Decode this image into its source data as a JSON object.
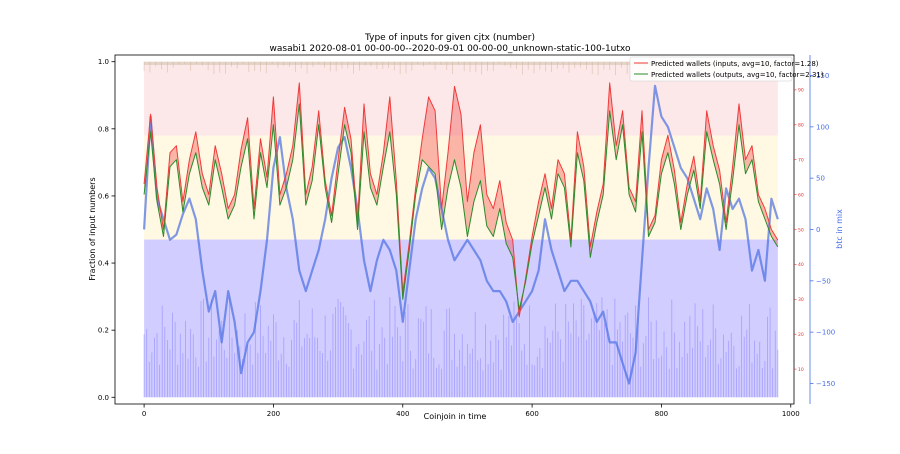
{
  "chart_data": {
    "type": "line",
    "title": "Type of inputs for given cjtx (number)",
    "subtitle": "wasabi1 2020-08-01 00-00-00--2020-09-01 00-00-00_unknown-static-100-1utxo",
    "xlabel": "Coinjoin in time",
    "ylabel": "Fraction of input numbers",
    "y2label": "btc in mix",
    "xlim": [
      -45,
      1005
    ],
    "ylim": [
      -0.02,
      1.02
    ],
    "y2lim": [
      -170,
      170
    ],
    "y3lim": [
      0,
      100
    ],
    "xticks": [
      0,
      200,
      400,
      600,
      800,
      1000
    ],
    "yticks": [
      0.0,
      0.2,
      0.4,
      0.6,
      0.8,
      1.0
    ],
    "y2ticks": [
      -150,
      -100,
      -50,
      0,
      50,
      100,
      150
    ],
    "y3ticks": [
      10,
      20,
      30,
      40,
      50,
      60,
      70,
      80,
      90
    ],
    "legend_position": "top-right",
    "grid": false,
    "series": [
      {
        "name": "Predicted wallets (inputs, avg=10, factor=1.28)",
        "color": "#f03a3a",
        "axis": "right-red",
        "x": [
          0,
          10,
          20,
          30,
          40,
          50,
          60,
          70,
          80,
          90,
          100,
          110,
          120,
          130,
          140,
          150,
          160,
          170,
          180,
          190,
          200,
          210,
          220,
          230,
          240,
          250,
          260,
          270,
          280,
          290,
          300,
          310,
          320,
          330,
          340,
          350,
          360,
          370,
          380,
          390,
          400,
          410,
          420,
          430,
          440,
          450,
          460,
          470,
          480,
          490,
          500,
          510,
          520,
          530,
          540,
          550,
          560,
          570,
          580,
          590,
          600,
          610,
          620,
          630,
          640,
          650,
          660,
          670,
          680,
          690,
          700,
          710,
          720,
          730,
          740,
          750,
          760,
          770,
          780,
          790,
          800,
          810,
          820,
          830,
          840,
          850,
          860,
          870,
          880,
          890,
          900,
          910,
          920,
          930,
          940,
          950,
          960,
          970,
          980
        ],
        "values": [
          63,
          83,
          62,
          50,
          72,
          74,
          58,
          70,
          78,
          66,
          60,
          74,
          66,
          56,
          60,
          73,
          82,
          56,
          76,
          65,
          88,
          60,
          66,
          74,
          92,
          60,
          68,
          84,
          64,
          54,
          70,
          85,
          76,
          52,
          86,
          66,
          60,
          72,
          88,
          64,
          32,
          46,
          62,
          76,
          88,
          84,
          56,
          72,
          91,
          83,
          58,
          72,
          80,
          60,
          56,
          64,
          52,
          47,
          25,
          36,
          48,
          58,
          66,
          56,
          70,
          66,
          47,
          78,
          68,
          45,
          55,
          63,
          92,
          74,
          84,
          62,
          58,
          84,
          50,
          54,
          70,
          77,
          67,
          52,
          63,
          71,
          58,
          84,
          74,
          67,
          52,
          68,
          86,
          70,
          74,
          60,
          56,
          50,
          47
        ]
      },
      {
        "name": "Predicted wallets (outputs, avg=10, factor=2.31)",
        "color": "#2a8c2a",
        "axis": "right-red",
        "x": [
          0,
          10,
          20,
          30,
          40,
          50,
          60,
          70,
          80,
          90,
          100,
          110,
          120,
          130,
          140,
          150,
          160,
          170,
          180,
          190,
          200,
          210,
          220,
          230,
          240,
          250,
          260,
          270,
          280,
          290,
          300,
          310,
          320,
          330,
          340,
          350,
          360,
          370,
          380,
          390,
          400,
          410,
          420,
          430,
          440,
          450,
          460,
          470,
          480,
          490,
          500,
          510,
          520,
          530,
          540,
          550,
          560,
          570,
          580,
          590,
          600,
          610,
          620,
          630,
          640,
          650,
          660,
          670,
          680,
          690,
          700,
          710,
          720,
          730,
          740,
          750,
          760,
          770,
          780,
          790,
          800,
          810,
          820,
          830,
          840,
          850,
          860,
          870,
          880,
          890,
          900,
          910,
          920,
          930,
          940,
          950,
          960,
          970,
          980
        ],
        "values": [
          60,
          78,
          58,
          48,
          68,
          70,
          55,
          66,
          72,
          62,
          57,
          70,
          62,
          53,
          57,
          68,
          76,
          53,
          72,
          62,
          80,
          57,
          62,
          70,
          86,
          57,
          64,
          80,
          62,
          52,
          66,
          80,
          72,
          50,
          78,
          62,
          57,
          68,
          78,
          60,
          30,
          44,
          60,
          70,
          68,
          66,
          50,
          62,
          70,
          62,
          48,
          58,
          64,
          51,
          48,
          56,
          46,
          42,
          27,
          35,
          46,
          54,
          62,
          53,
          66,
          62,
          45,
          72,
          64,
          42,
          52,
          60,
          84,
          70,
          80,
          60,
          55,
          78,
          48,
          52,
          66,
          72,
          63,
          50,
          60,
          67,
          56,
          78,
          70,
          63,
          50,
          64,
          80,
          66,
          70,
          58,
          53,
          48,
          45
        ]
      },
      {
        "name": "",
        "color": "#4a6fe3",
        "axis": "right-blue",
        "x": [
          0,
          10,
          20,
          30,
          40,
          50,
          60,
          70,
          80,
          90,
          100,
          110,
          120,
          130,
          140,
          150,
          160,
          170,
          180,
          190,
          200,
          210,
          220,
          230,
          240,
          250,
          260,
          270,
          280,
          290,
          300,
          310,
          320,
          330,
          340,
          350,
          360,
          370,
          380,
          390,
          400,
          410,
          420,
          430,
          440,
          450,
          460,
          470,
          480,
          490,
          500,
          510,
          520,
          530,
          540,
          550,
          560,
          570,
          580,
          590,
          600,
          610,
          620,
          630,
          640,
          650,
          660,
          670,
          680,
          690,
          700,
          710,
          720,
          730,
          740,
          750,
          760,
          770,
          780,
          790,
          800,
          810,
          820,
          830,
          840,
          850,
          860,
          870,
          880,
          890,
          900,
          910,
          920,
          930,
          940,
          950,
          960,
          970,
          980
        ],
        "values": [
          0,
          110,
          30,
          10,
          -10,
          -5,
          15,
          30,
          10,
          -40,
          -80,
          -60,
          -110,
          -60,
          -90,
          -140,
          -110,
          -100,
          -60,
          -10,
          60,
          90,
          40,
          10,
          -40,
          -60,
          -40,
          -20,
          10,
          50,
          80,
          90,
          60,
          20,
          -30,
          -60,
          -30,
          -10,
          -20,
          -40,
          -90,
          -40,
          10,
          40,
          60,
          50,
          20,
          -10,
          -30,
          -20,
          -10,
          -20,
          -30,
          -50,
          -60,
          -60,
          -70,
          -90,
          -80,
          -70,
          -60,
          -40,
          10,
          -20,
          -40,
          -60,
          -50,
          -50,
          -60,
          -70,
          -90,
          -80,
          -110,
          -110,
          -130,
          -150,
          -120,
          -30,
          60,
          140,
          110,
          100,
          80,
          60,
          50,
          30,
          10,
          40,
          20,
          -20,
          40,
          20,
          30,
          10,
          -40,
          -20,
          -50,
          30,
          10
        ]
      }
    ],
    "background_series": [
      {
        "name": "",
        "color": "#bdb8ff",
        "level": 0.47
      },
      {
        "name": "",
        "color": "#fff5d6",
        "level": 0.78
      },
      {
        "name": "",
        "color": "#fbdede",
        "level": 0.99
      },
      {
        "name": "",
        "color": "#d8c2b0",
        "level": 1.0
      }
    ]
  }
}
